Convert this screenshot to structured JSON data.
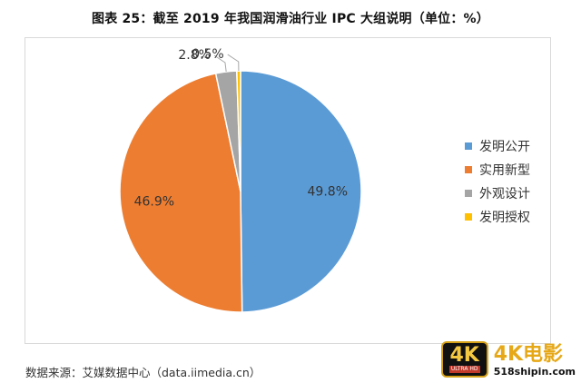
{
  "title": "图表 25：截至 2019 年我国润滑油行业 IPC 大组说明（单位：%）",
  "source": "数据来源：艾媒数据中心（data.iimedia.cn）",
  "watermark": {
    "logo_big": "4K",
    "logo_small": "ULTRA HD",
    "text_main": "4K电影",
    "text_url": "518shipin.com"
  },
  "chart_data": {
    "type": "pie",
    "title": "图表 25：截至 2019 年我国润滑油行业 IPC 大组说明（单位：%）",
    "unit": "%",
    "legend_position": "right",
    "slices": [
      {
        "name": "发明公开",
        "value": 49.8,
        "label": "49.8%",
        "color": "#5b9bd5"
      },
      {
        "name": "实用新型",
        "value": 46.9,
        "label": "46.9%",
        "color": "#ed7d31"
      },
      {
        "name": "外观设计",
        "value": 2.8,
        "label": "2.8%",
        "color": "#a5a5a5"
      },
      {
        "name": "发明授权",
        "value": 0.5,
        "label": "0.5%",
        "color": "#ffc000"
      }
    ]
  }
}
